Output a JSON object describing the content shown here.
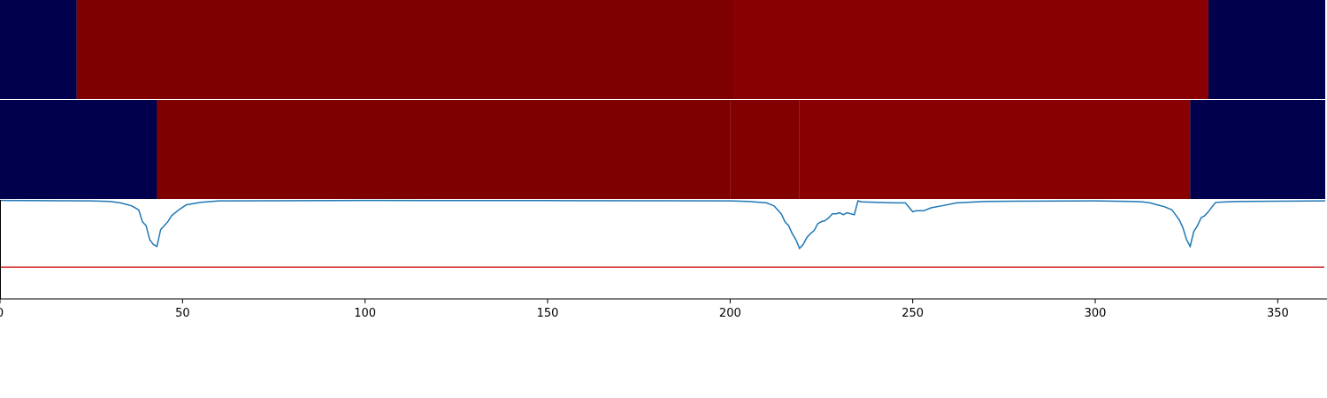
{
  "chart_data": {
    "type": "heatmap",
    "xlim": [
      0,
      363
    ],
    "x_ticks": [
      0,
      50,
      100,
      150,
      200,
      250,
      300,
      350
    ],
    "x_tick_labels": [
      "0",
      "50",
      "100",
      "150",
      "200",
      "250",
      "300",
      "350"
    ],
    "colors": {
      "background": "#00004c",
      "segment_dark": "#7f0000",
      "segment_mid": "#820000",
      "segment_light": "#880000",
      "curve": "#1f77b4",
      "threshold": "#d62728"
    },
    "rows": [
      {
        "segments": [
          {
            "start": 0,
            "end": 21,
            "color": "#00004c"
          },
          {
            "start": 21,
            "end": 201,
            "color": "#7f0000"
          },
          {
            "start": 201,
            "end": 331,
            "color": "#880000"
          },
          {
            "start": 331,
            "end": 363,
            "color": "#00004c"
          }
        ]
      },
      {
        "segments": [
          {
            "start": 0,
            "end": 43,
            "color": "#00004c"
          },
          {
            "start": 43,
            "end": 200,
            "color": "#7f0000"
          },
          {
            "start": 200,
            "end": 219,
            "color": "#820000"
          },
          {
            "start": 219,
            "end": 326,
            "color": "#880000"
          },
          {
            "start": 326,
            "end": 363,
            "color": "#00004c"
          }
        ]
      }
    ],
    "signal": {
      "ylim": [
        0,
        1
      ],
      "threshold": 0.32,
      "x": [
        0,
        25,
        30,
        33,
        36,
        38,
        39,
        40,
        41,
        42,
        43,
        44,
        45,
        46,
        47,
        49,
        51,
        55,
        60,
        100,
        150,
        200,
        205,
        210,
        212,
        213,
        214,
        215,
        216,
        217,
        218,
        219,
        220,
        221,
        222,
        223,
        224,
        225,
        226,
        227,
        228,
        229,
        230,
        231,
        232,
        233,
        234,
        235,
        236,
        240,
        245,
        248,
        250,
        251,
        253,
        255,
        258,
        262,
        270,
        300,
        310,
        313,
        315,
        317,
        319,
        321,
        322,
        323,
        324,
        325,
        326,
        327,
        328,
        329,
        330,
        331,
        332,
        333,
        336,
        340,
        363
      ],
      "y": [
        0.995,
        0.99,
        0.985,
        0.97,
        0.94,
        0.9,
        0.78,
        0.74,
        0.6,
        0.55,
        0.53,
        0.7,
        0.74,
        0.78,
        0.84,
        0.9,
        0.95,
        0.975,
        0.99,
        0.995,
        0.993,
        0.99,
        0.985,
        0.97,
        0.94,
        0.9,
        0.86,
        0.78,
        0.74,
        0.66,
        0.6,
        0.51,
        0.55,
        0.62,
        0.66,
        0.69,
        0.76,
        0.78,
        0.79,
        0.82,
        0.86,
        0.86,
        0.87,
        0.85,
        0.87,
        0.86,
        0.85,
        0.99,
        0.98,
        0.975,
        0.97,
        0.97,
        0.88,
        0.89,
        0.89,
        0.92,
        0.94,
        0.97,
        0.985,
        0.99,
        0.985,
        0.98,
        0.97,
        0.95,
        0.93,
        0.9,
        0.85,
        0.8,
        0.72,
        0.6,
        0.53,
        0.68,
        0.74,
        0.82,
        0.84,
        0.88,
        0.93,
        0.975,
        0.98,
        0.985,
        0.99
      ]
    }
  }
}
